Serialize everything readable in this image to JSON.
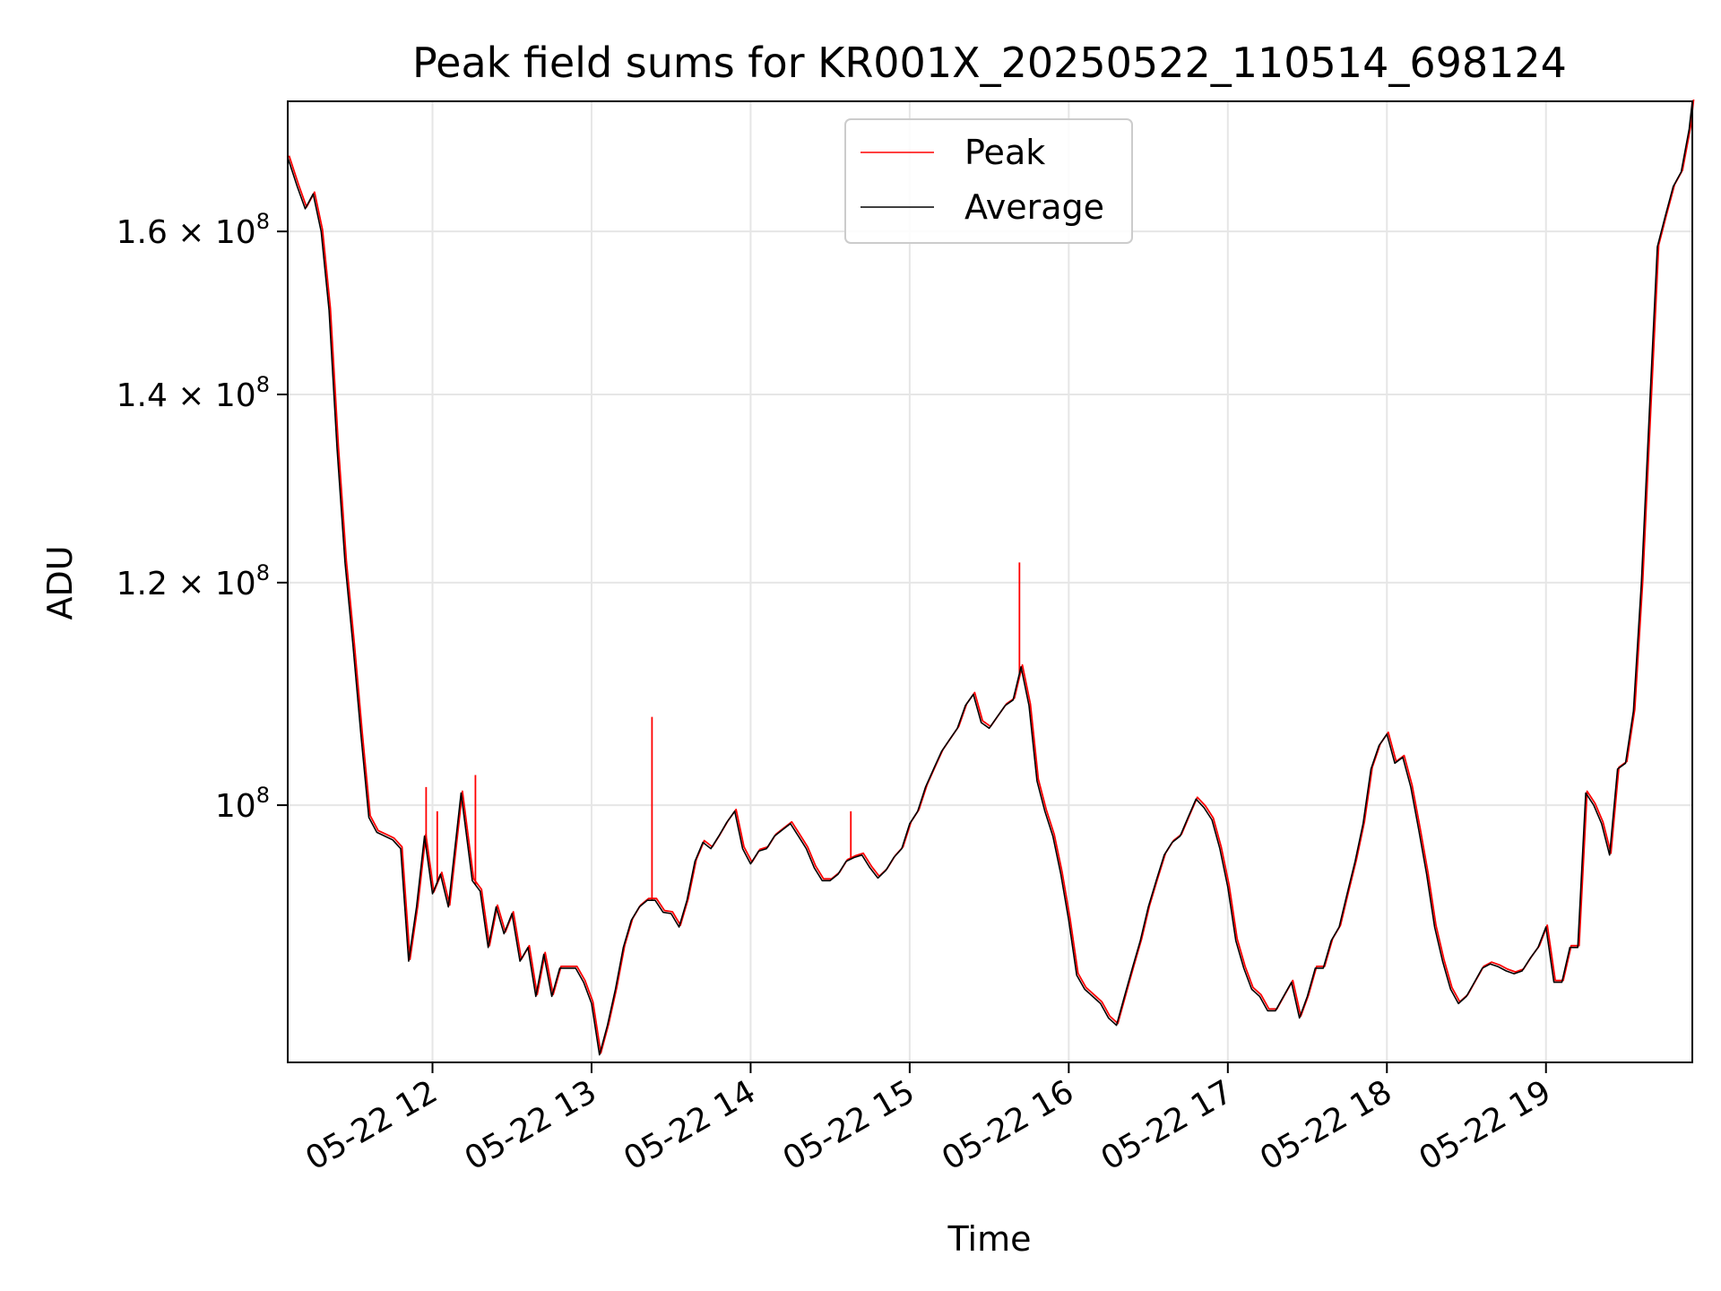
{
  "chart_data": {
    "type": "line",
    "title": "Peak field sums for KR001X_20250522_110514_698124",
    "xlabel": "Time",
    "ylabel": "ADU",
    "y_scale": "log",
    "ylim": [
      81000000,
      178000000
    ],
    "xlim_hours": [
      11.09,
      19.92
    ],
    "grid": true,
    "legend_position": "upper-center",
    "x_ticks": [
      {
        "value": 12,
        "label": "05-22 12"
      },
      {
        "value": 13,
        "label": "05-22 13"
      },
      {
        "value": 14,
        "label": "05-22 14"
      },
      {
        "value": 15,
        "label": "05-22 15"
      },
      {
        "value": 16,
        "label": "05-22 16"
      },
      {
        "value": 17,
        "label": "05-22 17"
      },
      {
        "value": 18,
        "label": "05-22 18"
      },
      {
        "value": 19,
        "label": "05-22 19"
      }
    ],
    "y_ticks": [
      {
        "value": 100000000,
        "mantissa": "",
        "exponent": "8"
      },
      {
        "value": 120000000,
        "mantissa": "1.2",
        "exponent": "8"
      },
      {
        "value": 140000000,
        "mantissa": "1.4",
        "exponent": "8"
      },
      {
        "value": 160000000,
        "mantissa": "1.6",
        "exponent": "8"
      }
    ],
    "y_tick_base": "10",
    "y_tick_times": "×",
    "series": [
      {
        "name": "Peak",
        "color": "#ff0000"
      },
      {
        "name": "Average",
        "color": "#000000"
      }
    ],
    "average_points": [
      [
        11.09,
        170
      ],
      [
        11.15,
        166
      ],
      [
        11.2,
        163
      ],
      [
        11.25,
        165
      ],
      [
        11.3,
        160
      ],
      [
        11.35,
        150
      ],
      [
        11.4,
        134
      ],
      [
        11.45,
        122
      ],
      [
        11.5,
        114
      ],
      [
        11.55,
        106
      ],
      [
        11.6,
        99
      ],
      [
        11.65,
        97.8
      ],
      [
        11.7,
        97.5
      ],
      [
        11.75,
        97.2
      ],
      [
        11.8,
        96.5
      ],
      [
        11.85,
        88
      ],
      [
        11.9,
        92
      ],
      [
        11.95,
        97.5
      ],
      [
        12.0,
        93
      ],
      [
        12.05,
        94.5
      ],
      [
        12.1,
        92
      ],
      [
        12.18,
        101
      ],
      [
        12.25,
        94
      ],
      [
        12.3,
        93.2
      ],
      [
        12.35,
        89
      ],
      [
        12.4,
        92
      ],
      [
        12.45,
        90
      ],
      [
        12.5,
        91.5
      ],
      [
        12.55,
        88
      ],
      [
        12.6,
        89
      ],
      [
        12.65,
        85.5
      ],
      [
        12.7,
        88.5
      ],
      [
        12.75,
        85.5
      ],
      [
        12.8,
        87.5
      ],
      [
        12.85,
        87.5
      ],
      [
        12.9,
        87.5
      ],
      [
        12.95,
        86.5
      ],
      [
        13.0,
        85
      ],
      [
        13.05,
        81.5
      ],
      [
        13.1,
        83.5
      ],
      [
        13.15,
        86
      ],
      [
        13.2,
        89
      ],
      [
        13.25,
        91
      ],
      [
        13.3,
        92
      ],
      [
        13.35,
        92.5
      ],
      [
        13.4,
        92.5
      ],
      [
        13.45,
        91.6
      ],
      [
        13.5,
        91.5
      ],
      [
        13.55,
        90.5
      ],
      [
        13.6,
        92.5
      ],
      [
        13.65,
        95.5
      ],
      [
        13.7,
        97
      ],
      [
        13.75,
        96.5
      ],
      [
        13.8,
        97.5
      ],
      [
        13.85,
        98.6
      ],
      [
        13.9,
        99.5
      ],
      [
        13.95,
        96.5
      ],
      [
        14.0,
        95.3
      ],
      [
        14.05,
        96.3
      ],
      [
        14.1,
        96.5
      ],
      [
        14.15,
        97.5
      ],
      [
        14.2,
        98
      ],
      [
        14.25,
        98.5
      ],
      [
        14.3,
        97.5
      ],
      [
        14.35,
        96.5
      ],
      [
        14.4,
        95
      ],
      [
        14.45,
        94
      ],
      [
        14.5,
        94
      ],
      [
        14.55,
        94.5
      ],
      [
        14.6,
        95.5
      ],
      [
        14.65,
        95.8
      ],
      [
        14.7,
        96
      ],
      [
        14.75,
        95
      ],
      [
        14.8,
        94.2
      ],
      [
        14.85,
        94.8
      ],
      [
        14.9,
        95.8
      ],
      [
        14.95,
        96.5
      ],
      [
        15.0,
        98.5
      ],
      [
        15.05,
        99.5
      ],
      [
        15.1,
        101.5
      ],
      [
        15.15,
        103
      ],
      [
        15.2,
        104.5
      ],
      [
        15.25,
        105.5
      ],
      [
        15.3,
        106.5
      ],
      [
        15.35,
        108.5
      ],
      [
        15.4,
        109.5
      ],
      [
        15.45,
        107
      ],
      [
        15.5,
        106.5
      ],
      [
        15.55,
        107.5
      ],
      [
        15.6,
        108.5
      ],
      [
        15.65,
        109
      ],
      [
        15.7,
        112
      ],
      [
        15.75,
        108.5
      ],
      [
        15.8,
        102
      ],
      [
        15.85,
        99.5
      ],
      [
        15.9,
        97.5
      ],
      [
        15.95,
        94.5
      ],
      [
        16.0,
        91
      ],
      [
        16.05,
        87
      ],
      [
        16.1,
        86
      ],
      [
        16.15,
        85.5
      ],
      [
        16.2,
        85
      ],
      [
        16.25,
        84
      ],
      [
        16.3,
        83.5
      ],
      [
        16.35,
        85.5
      ],
      [
        16.4,
        87.5
      ],
      [
        16.45,
        89.5
      ],
      [
        16.5,
        92
      ],
      [
        16.55,
        94
      ],
      [
        16.6,
        96
      ],
      [
        16.65,
        97
      ],
      [
        16.7,
        97.5
      ],
      [
        16.75,
        99
      ],
      [
        16.8,
        100.5
      ],
      [
        16.85,
        99.8
      ],
      [
        16.9,
        98.8
      ],
      [
        16.95,
        96.5
      ],
      [
        17.0,
        93.5
      ],
      [
        17.05,
        89.5
      ],
      [
        17.1,
        87.5
      ],
      [
        17.15,
        86
      ],
      [
        17.2,
        85.5
      ],
      [
        17.25,
        84.5
      ],
      [
        17.3,
        84.5
      ],
      [
        17.35,
        85.5
      ],
      [
        17.4,
        86.5
      ],
      [
        17.45,
        84
      ],
      [
        17.5,
        85.5
      ],
      [
        17.55,
        87.5
      ],
      [
        17.6,
        87.5
      ],
      [
        17.65,
        89.5
      ],
      [
        17.7,
        90.5
      ],
      [
        17.75,
        93
      ],
      [
        17.8,
        95.5
      ],
      [
        17.85,
        98.5
      ],
      [
        17.9,
        103
      ],
      [
        17.95,
        105
      ],
      [
        18.0,
        106
      ],
      [
        18.05,
        103.5
      ],
      [
        18.1,
        104
      ],
      [
        18.15,
        101.5
      ],
      [
        18.2,
        98
      ],
      [
        18.25,
        94.5
      ],
      [
        18.3,
        90.5
      ],
      [
        18.35,
        88
      ],
      [
        18.4,
        86
      ],
      [
        18.45,
        85
      ],
      [
        18.5,
        85.5
      ],
      [
        18.55,
        86.5
      ],
      [
        18.6,
        87.5
      ],
      [
        18.65,
        87.8
      ],
      [
        18.7,
        87.6
      ],
      [
        18.75,
        87.3
      ],
      [
        18.8,
        87.1
      ],
      [
        18.85,
        87.3
      ],
      [
        18.9,
        88.2
      ],
      [
        18.95,
        89
      ],
      [
        19.0,
        90.5
      ],
      [
        19.05,
        86.5
      ],
      [
        19.1,
        86.5
      ],
      [
        19.15,
        89
      ],
      [
        19.2,
        89
      ],
      [
        19.25,
        101
      ],
      [
        19.3,
        100
      ],
      [
        19.35,
        98.5
      ],
      [
        19.4,
        96
      ],
      [
        19.45,
        103
      ],
      [
        19.5,
        103.5
      ],
      [
        19.55,
        108
      ],
      [
        19.6,
        120
      ],
      [
        19.65,
        138
      ],
      [
        19.7,
        158
      ],
      [
        19.75,
        162
      ],
      [
        19.8,
        166
      ],
      [
        19.85,
        168
      ],
      [
        19.9,
        174
      ],
      [
        19.92,
        178
      ]
    ],
    "peak_spikes": [
      [
        11.96,
        101.5
      ],
      [
        12.03,
        99.5
      ],
      [
        12.27,
        102.5
      ],
      [
        13.38,
        107.5
      ],
      [
        14.63,
        99.5
      ],
      [
        15.69,
        122
      ]
    ]
  }
}
